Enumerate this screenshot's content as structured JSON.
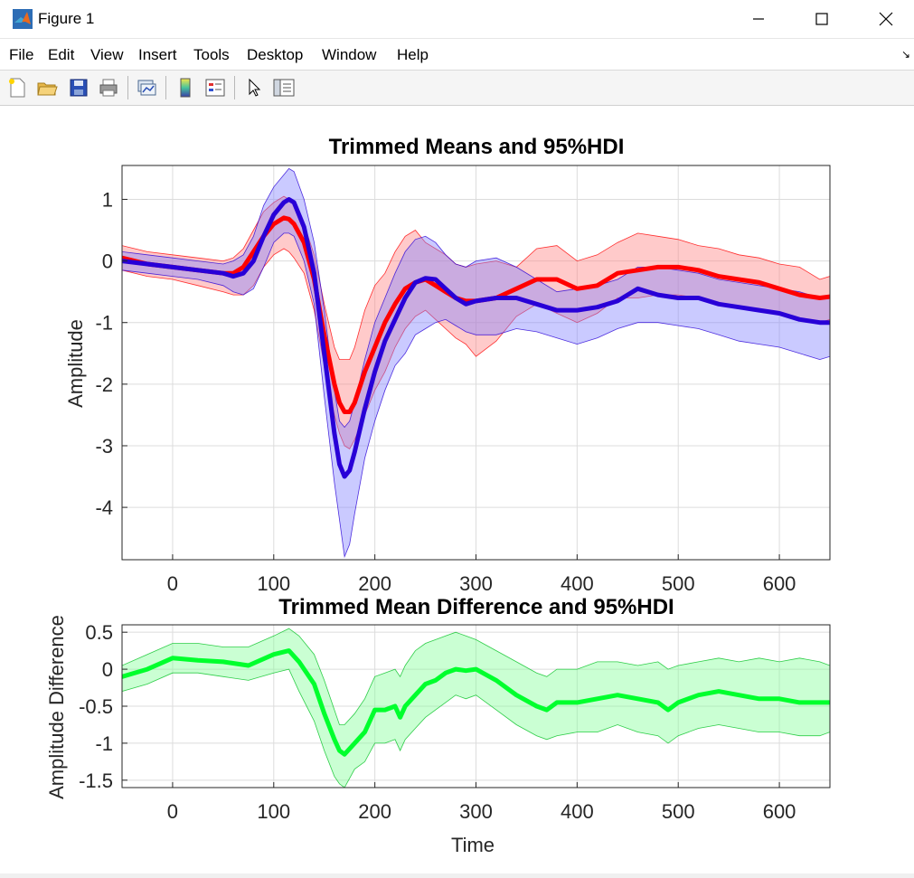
{
  "window": {
    "title": "Figure 1"
  },
  "menu": [
    "File",
    "Edit",
    "View",
    "Insert",
    "Tools",
    "Desktop",
    "Window",
    "Help"
  ],
  "toolbar": {
    "buttons": [
      "new-figure",
      "open-file",
      "save-figure",
      "print-figure",
      "link-plot",
      "insert-colorbar",
      "insert-legend",
      "edit-plot",
      "property-inspector"
    ]
  },
  "colors": {
    "red": "#ff0000",
    "blue": "#2800d7",
    "green": "#00ff2d",
    "red_fill": "#ff8080",
    "blue_fill": "#8080ff",
    "green_fill": "#80ff96"
  },
  "chart_data": [
    {
      "type": "line",
      "title": "Trimmed Means and 95%HDI",
      "xlabel": "",
      "ylabel": "Amplitude",
      "xlim": [
        -50,
        650
      ],
      "ylim": [
        -4.85,
        1.55
      ],
      "xticks": [
        0,
        100,
        200,
        300,
        400,
        500,
        600
      ],
      "yticks": [
        1,
        0,
        -1,
        -2,
        -3,
        -4
      ],
      "grid": true,
      "x": [
        -50,
        -25,
        0,
        25,
        50,
        60,
        70,
        80,
        90,
        100,
        110,
        115,
        120,
        130,
        140,
        150,
        160,
        165,
        170,
        175,
        180,
        190,
        200,
        210,
        220,
        230,
        240,
        250,
        260,
        270,
        280,
        290,
        300,
        320,
        340,
        360,
        380,
        400,
        420,
        440,
        460,
        480,
        500,
        520,
        540,
        560,
        580,
        600,
        620,
        640,
        650
      ],
      "series": [
        {
          "name": "red",
          "color": "#ff0000",
          "values": [
            0.05,
            -0.05,
            -0.1,
            -0.15,
            -0.2,
            -0.2,
            -0.1,
            0.15,
            0.4,
            0.6,
            0.7,
            0.68,
            0.6,
            0.3,
            -0.3,
            -1.2,
            -2.0,
            -2.3,
            -2.45,
            -2.45,
            -2.3,
            -1.8,
            -1.4,
            -1.0,
            -0.7,
            -0.45,
            -0.35,
            -0.3,
            -0.4,
            -0.5,
            -0.6,
            -0.65,
            -0.65,
            -0.6,
            -0.45,
            -0.3,
            -0.3,
            -0.45,
            -0.4,
            -0.2,
            -0.15,
            -0.1,
            -0.1,
            -0.15,
            -0.25,
            -0.3,
            -0.35,
            -0.45,
            -0.55,
            -0.6,
            -0.58
          ],
          "upper": [
            0.25,
            0.15,
            0.1,
            0.05,
            0.0,
            0.05,
            0.2,
            0.5,
            0.8,
            0.95,
            1.05,
            1.0,
            0.9,
            0.6,
            0.1,
            -0.7,
            -1.4,
            -1.6,
            -1.6,
            -1.6,
            -1.4,
            -0.8,
            -0.4,
            -0.2,
            0.15,
            0.4,
            0.5,
            0.3,
            0.2,
            0.1,
            -0.05,
            -0.1,
            -0.05,
            0.0,
            -0.1,
            0.2,
            0.25,
            0.0,
            0.1,
            0.3,
            0.45,
            0.4,
            0.35,
            0.25,
            0.2,
            0.1,
            0.05,
            -0.05,
            -0.1,
            -0.3,
            -0.25
          ],
          "lower": [
            -0.15,
            -0.25,
            -0.3,
            -0.4,
            -0.5,
            -0.55,
            -0.55,
            -0.4,
            -0.1,
            0.1,
            0.2,
            0.15,
            0.05,
            -0.2,
            -0.8,
            -1.7,
            -2.5,
            -2.8,
            -3.0,
            -3.05,
            -2.9,
            -2.5,
            -2.1,
            -1.8,
            -1.4,
            -1.1,
            -0.9,
            -0.8,
            -0.95,
            -1.1,
            -1.25,
            -1.35,
            -1.55,
            -1.3,
            -0.9,
            -0.7,
            -0.85,
            -1.0,
            -0.85,
            -0.6,
            -0.6,
            -0.55,
            -0.55,
            -0.6,
            -0.7,
            -0.75,
            -0.8,
            -0.85,
            -0.95,
            -1.0,
            -0.95
          ]
        },
        {
          "name": "blue",
          "color": "#2800d7",
          "values": [
            0.0,
            -0.05,
            -0.1,
            -0.15,
            -0.2,
            -0.25,
            -0.2,
            0.0,
            0.4,
            0.75,
            0.95,
            1.0,
            0.95,
            0.55,
            -0.2,
            -1.5,
            -2.8,
            -3.3,
            -3.5,
            -3.4,
            -3.1,
            -2.4,
            -1.8,
            -1.3,
            -0.95,
            -0.6,
            -0.35,
            -0.28,
            -0.3,
            -0.45,
            -0.6,
            -0.7,
            -0.65,
            -0.6,
            -0.6,
            -0.7,
            -0.8,
            -0.8,
            -0.75,
            -0.65,
            -0.45,
            -0.55,
            -0.6,
            -0.6,
            -0.7,
            -0.75,
            -0.8,
            -0.85,
            -0.95,
            -1.0,
            -1.0
          ],
          "upper": [
            0.15,
            0.1,
            0.05,
            0.0,
            -0.05,
            0.0,
            0.1,
            0.4,
            0.9,
            1.2,
            1.4,
            1.5,
            1.45,
            1.0,
            0.3,
            -0.8,
            -2.1,
            -2.6,
            -2.7,
            -2.6,
            -2.3,
            -1.6,
            -1.0,
            -0.6,
            -0.2,
            0.15,
            0.35,
            0.4,
            0.3,
            0.1,
            -0.05,
            -0.1,
            0.0,
            0.05,
            -0.1,
            -0.3,
            -0.5,
            -0.45,
            -0.4,
            -0.3,
            -0.1,
            -0.1,
            -0.15,
            -0.2,
            -0.3,
            -0.35,
            -0.4,
            -0.45,
            -0.5,
            -0.6,
            -0.55
          ],
          "lower": [
            -0.15,
            -0.2,
            -0.25,
            -0.3,
            -0.4,
            -0.5,
            -0.55,
            -0.45,
            -0.1,
            0.3,
            0.45,
            0.45,
            0.4,
            0.0,
            -0.7,
            -2.2,
            -3.6,
            -4.2,
            -4.8,
            -4.6,
            -4.1,
            -3.2,
            -2.6,
            -2.1,
            -1.7,
            -1.5,
            -1.2,
            -1.1,
            -1.0,
            -0.95,
            -1.05,
            -1.15,
            -1.2,
            -1.2,
            -1.1,
            -1.15,
            -1.25,
            -1.35,
            -1.25,
            -1.1,
            -1.0,
            -1.0,
            -1.05,
            -1.1,
            -1.2,
            -1.3,
            -1.35,
            -1.4,
            -1.5,
            -1.6,
            -1.55
          ]
        }
      ]
    },
    {
      "type": "line",
      "title": "Trimmed Mean Difference and 95%HDI",
      "xlabel": "Time",
      "ylabel": "Amplitude Difference",
      "xlim": [
        -50,
        650
      ],
      "ylim": [
        -1.6,
        0.6
      ],
      "xticks": [
        0,
        100,
        200,
        300,
        400,
        500,
        600
      ],
      "yticks": [
        0.5,
        0,
        -0.5,
        -1,
        -1.5
      ],
      "ytick_labels": [
        "0.5",
        "0",
        "-0.5",
        "-1",
        "-1.5"
      ],
      "grid": true,
      "x": [
        -50,
        -25,
        0,
        25,
        50,
        75,
        100,
        115,
        125,
        140,
        150,
        160,
        165,
        170,
        180,
        190,
        200,
        210,
        220,
        225,
        230,
        240,
        250,
        260,
        270,
        280,
        290,
        300,
        320,
        340,
        360,
        370,
        380,
        400,
        420,
        440,
        460,
        480,
        490,
        500,
        520,
        540,
        560,
        580,
        600,
        620,
        640,
        650
      ],
      "series": [
        {
          "name": "difference",
          "color": "#00ff2d",
          "values": [
            -0.1,
            0.0,
            0.15,
            0.12,
            0.1,
            0.05,
            0.2,
            0.25,
            0.1,
            -0.2,
            -0.6,
            -0.95,
            -1.1,
            -1.15,
            -1.0,
            -0.85,
            -0.55,
            -0.55,
            -0.5,
            -0.65,
            -0.5,
            -0.35,
            -0.2,
            -0.15,
            -0.05,
            0.0,
            -0.02,
            0.0,
            -0.15,
            -0.35,
            -0.5,
            -0.55,
            -0.45,
            -0.45,
            -0.4,
            -0.35,
            -0.4,
            -0.45,
            -0.55,
            -0.45,
            -0.35,
            -0.3,
            -0.35,
            -0.4,
            -0.4,
            -0.45,
            -0.45,
            -0.45
          ],
          "upper": [
            0.05,
            0.2,
            0.35,
            0.35,
            0.3,
            0.3,
            0.45,
            0.55,
            0.45,
            0.2,
            -0.15,
            -0.55,
            -0.75,
            -0.75,
            -0.6,
            -0.4,
            -0.1,
            -0.05,
            0.0,
            -0.1,
            0.05,
            0.25,
            0.35,
            0.4,
            0.45,
            0.5,
            0.45,
            0.4,
            0.25,
            0.1,
            -0.05,
            -0.1,
            0.0,
            0.0,
            0.1,
            0.1,
            0.05,
            0.1,
            0.0,
            0.05,
            0.1,
            0.15,
            0.1,
            0.15,
            0.1,
            0.15,
            0.1,
            0.05
          ],
          "lower": [
            -0.3,
            -0.2,
            -0.05,
            -0.05,
            -0.1,
            -0.15,
            -0.05,
            0.0,
            -0.3,
            -0.7,
            -1.1,
            -1.45,
            -1.55,
            -1.6,
            -1.35,
            -1.25,
            -1.0,
            -1.0,
            -0.95,
            -1.1,
            -0.95,
            -0.8,
            -0.65,
            -0.55,
            -0.45,
            -0.35,
            -0.4,
            -0.35,
            -0.55,
            -0.75,
            -0.9,
            -0.95,
            -0.9,
            -0.85,
            -0.85,
            -0.75,
            -0.85,
            -0.9,
            -1.0,
            -0.9,
            -0.8,
            -0.75,
            -0.8,
            -0.85,
            -0.85,
            -0.9,
            -0.9,
            -0.85
          ]
        }
      ]
    }
  ]
}
